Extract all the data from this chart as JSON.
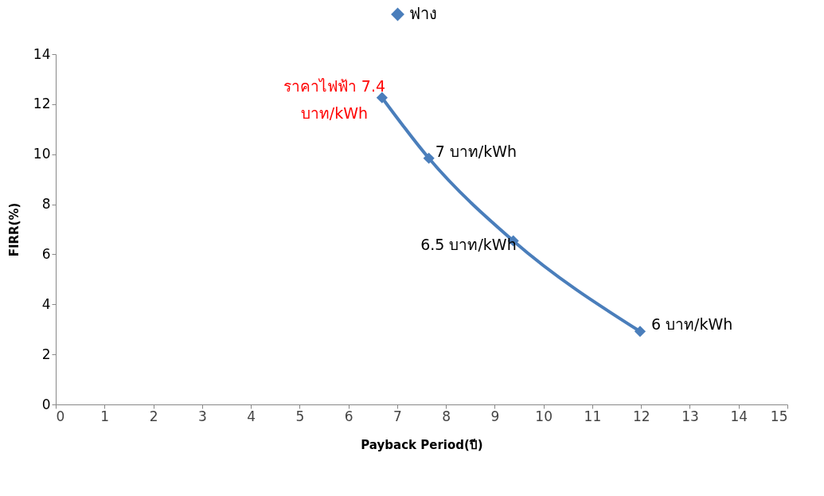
{
  "chart_data": {
    "type": "line",
    "xlabel": "Payback Period(ปี)",
    "ylabel": "FIRR(%)",
    "x": [
      6.69,
      7.65,
      9.38,
      11.98
    ],
    "series": [
      {
        "name": "ฟาง",
        "color": "#4a7ebb",
        "values": [
          12.26,
          9.84,
          6.54,
          2.92
        ]
      }
    ],
    "xlim": [
      0,
      15
    ],
    "xticks": [
      0,
      1,
      2,
      3,
      4,
      5,
      6,
      7,
      8,
      9,
      10,
      11,
      12,
      13,
      14,
      15
    ],
    "ylim": [
      0,
      14
    ],
    "yticks": [
      0,
      2,
      4,
      6,
      8,
      10,
      12,
      14
    ],
    "grid": false,
    "legend": "top",
    "marker": "diamond",
    "line_style": "solid",
    "annotations": [
      {
        "text": "ราคาไฟฟ้า 7.4\nบาท/kWh",
        "x": 6.69,
        "y": 12.26
      },
      {
        "text": "7 บาท/kWh",
        "x": 7.65,
        "y": 9.84
      },
      {
        "text": "6.5 บาท/kWh",
        "x": 9.38,
        "y": 6.54
      },
      {
        "text": "6 บาท/kWh",
        "x": 11.98,
        "y": 2.92
      }
    ]
  }
}
